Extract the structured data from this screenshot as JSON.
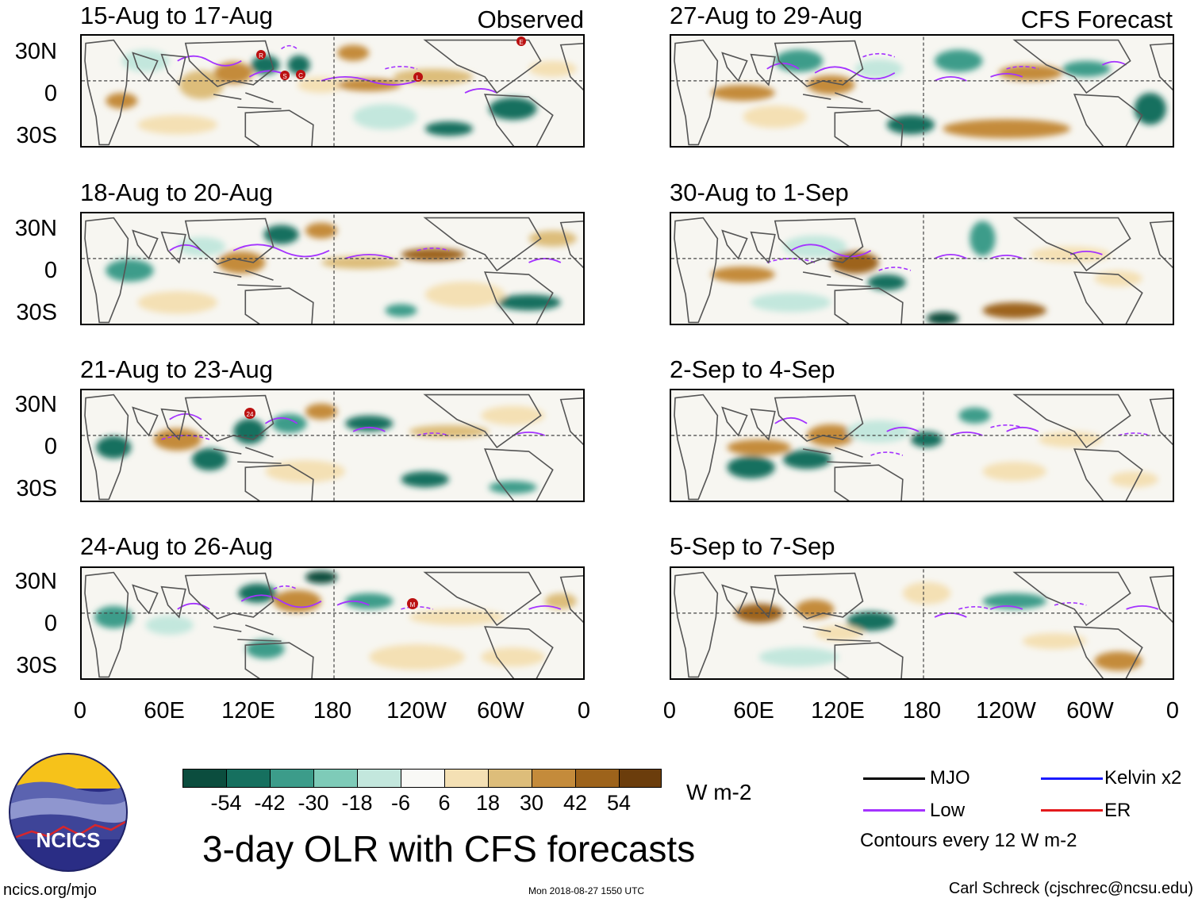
{
  "panels": {
    "p1": {
      "title": "15-Aug to 17-Aug",
      "tag": "Observed"
    },
    "p2": {
      "title": "18-Aug to 20-Aug"
    },
    "p3": {
      "title": "21-Aug to 23-Aug"
    },
    "p4": {
      "title": "24-Aug to 26-Aug"
    },
    "p5": {
      "title": "27-Aug to 29-Aug",
      "tag": "CFS Forecast"
    },
    "p6": {
      "title": "30-Aug to 1-Sep"
    },
    "p7": {
      "title": "2-Sep to 4-Sep"
    },
    "p8": {
      "title": "5-Sep to 7-Sep"
    }
  },
  "lat_labels": {
    "n": "30N",
    "eq": "0",
    "s": "30S"
  },
  "lon_labels": {
    "a": "0",
    "b": "60E",
    "c": "120E",
    "d": "180",
    "e": "120W",
    "f": "60W",
    "g": "0"
  },
  "storm_markers": {
    "r": "R",
    "s": "S",
    "c": "C",
    "l": "L",
    "e": "E",
    "n24": "24",
    "m": "M"
  },
  "colorbar": {
    "colors": [
      "#0b4d3e",
      "#16705f",
      "#3c9c8a",
      "#7ecbb8",
      "#c3e7dd",
      "#f9f9f6",
      "#f4e0b4",
      "#ddbd7a",
      "#c48b3b",
      "#9d631b",
      "#6b3d0c"
    ],
    "ticks": {
      "t1": "-54",
      "t2": "-42",
      "t3": "-30",
      "t4": "-18",
      "t5": "-6",
      "t6": "6",
      "t7": "18",
      "t8": "30",
      "t9": "42",
      "t10": "54"
    },
    "units": "W m-2"
  },
  "main_title": "3-day OLR with CFS forecasts",
  "legend": {
    "mjo": "MJO",
    "kelvin": "Kelvin x2",
    "low": "Low",
    "er": "ER",
    "contours": "Contours every 12 W m-2",
    "colors": {
      "mjo": "#000000",
      "kelvin": "#1a1aff",
      "low": "#a433ff",
      "er": "#e31a1c"
    }
  },
  "logo": {
    "text": "NCICS"
  },
  "footer": {
    "url": "ncics.org/mjo",
    "timestamp": "Mon 2018-08-27 1550 UTC",
    "author": "Carl Schreck (cjschrec@ncsu.edu)"
  }
}
